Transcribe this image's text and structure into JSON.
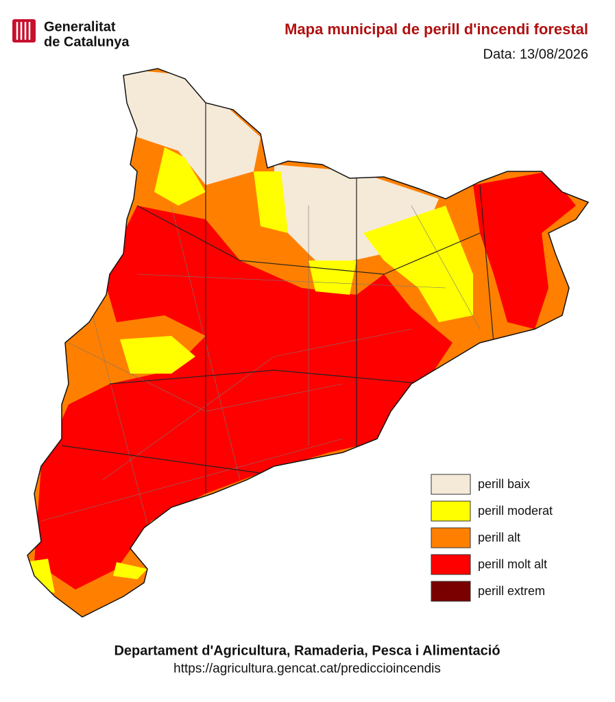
{
  "header": {
    "logo_line1": "Generalitat",
    "logo_line2": "de Catalunya",
    "title": "Mapa municipal de perill d'incendi forestal",
    "date": "Data: 13/08/2026"
  },
  "legend": {
    "items": [
      {
        "label": "perill baix",
        "color": "#f5e9d8"
      },
      {
        "label": "perill moderat",
        "color": "#ffff00"
      },
      {
        "label": "perill alt",
        "color": "#ff8000"
      },
      {
        "label": "perill molt alt",
        "color": "#ff0000"
      },
      {
        "label": "perill extrem",
        "color": "#7a0000"
      }
    ]
  },
  "footer": {
    "department": "Departament d'Agricultura, Ramaderia, Pesca i Alimentació",
    "url": "https://agricultura.gencat.cat/prediccioincendis"
  }
}
